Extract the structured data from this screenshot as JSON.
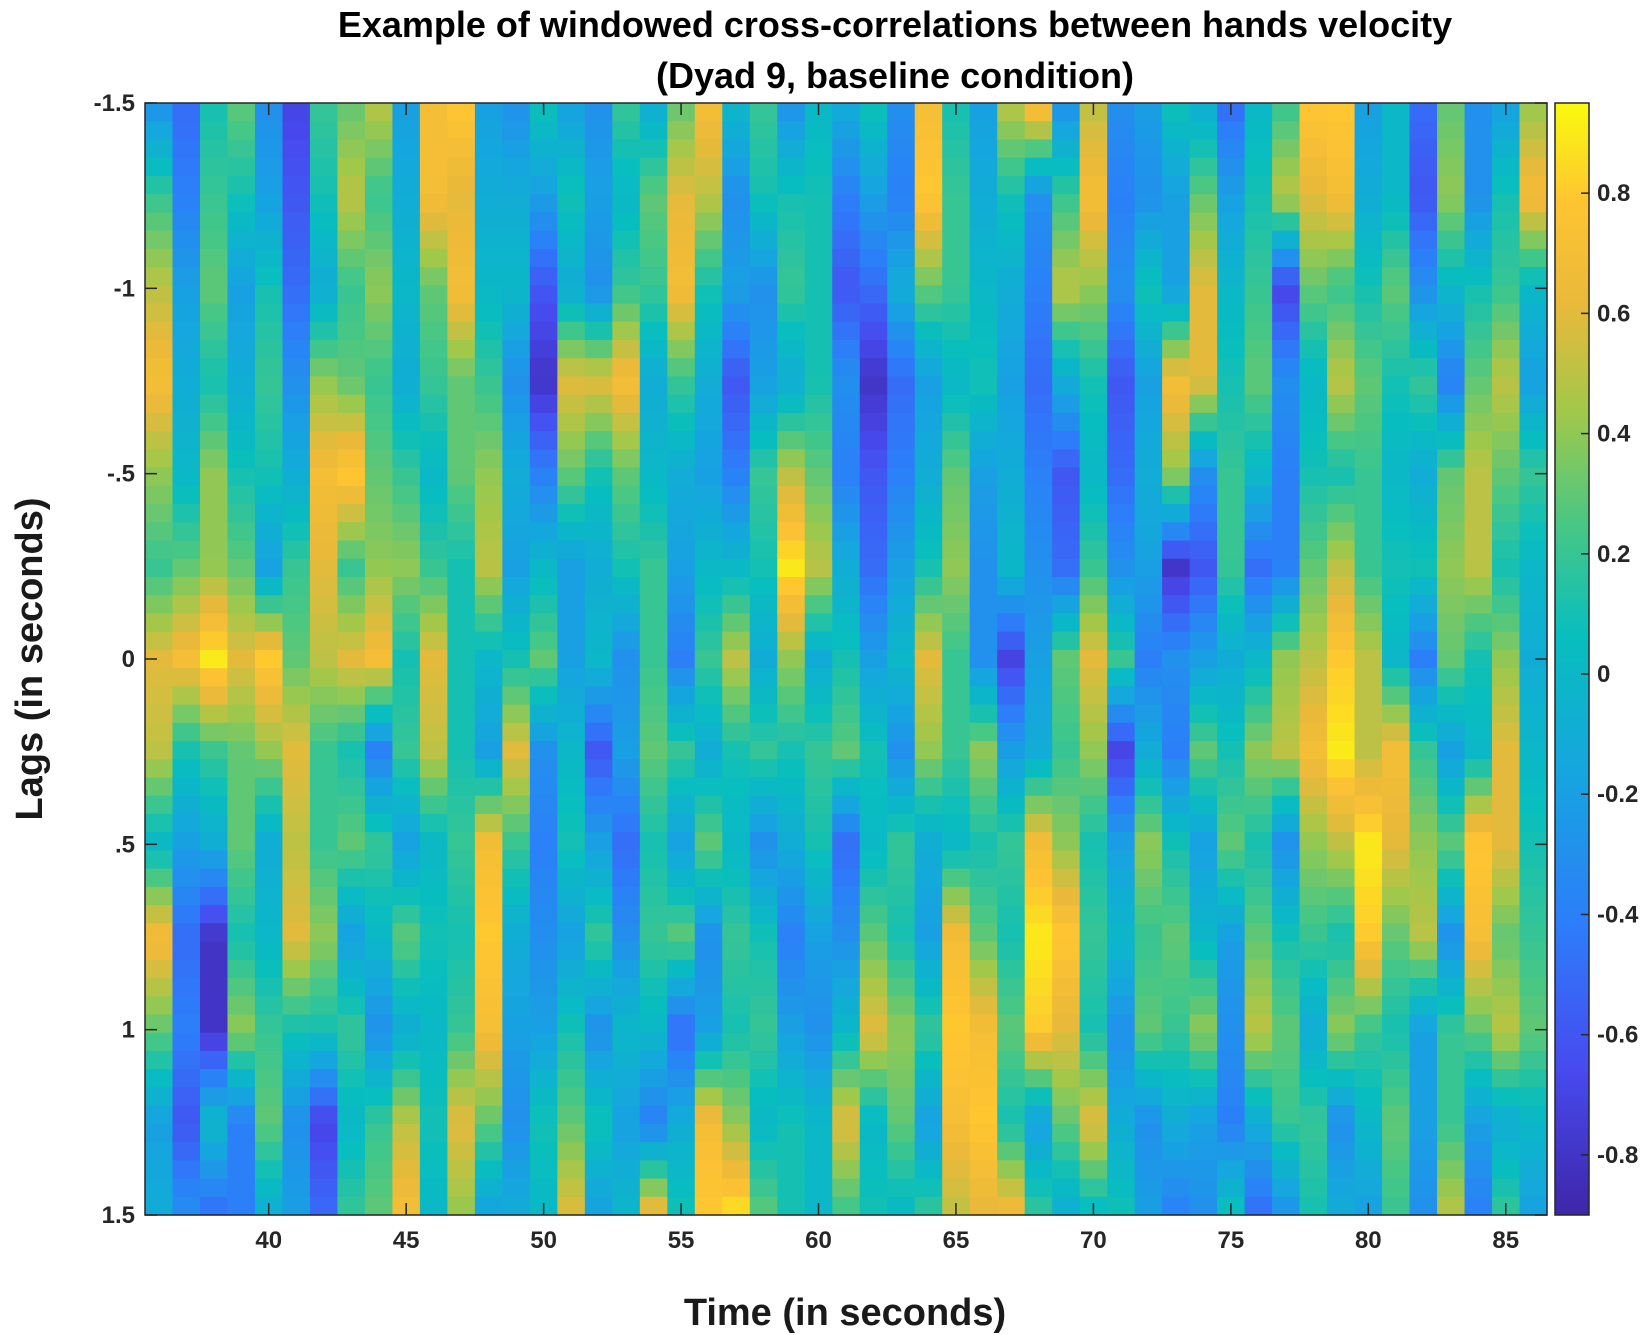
{
  "chart_data": {
    "type": "heatmap",
    "title": [
      "Example of windowed cross-correlations between hands velocity",
      "(Dyad 9, baseline condition)"
    ],
    "xlabel": "Time (in seconds)",
    "ylabel": "Lags (in seconds)",
    "xlim": [
      35.5,
      86.5
    ],
    "ylim": [
      -1.5,
      1.5
    ],
    "y_reversed": true,
    "x_ticks": [
      40,
      45,
      50,
      55,
      60,
      65,
      70,
      75,
      80,
      85
    ],
    "x_tick_labels": [
      "40",
      "45",
      "50",
      "55",
      "60",
      "65",
      "70",
      "75",
      "80",
      "85"
    ],
    "y_ticks": [
      -1.5,
      -1,
      -0.5,
      0,
      0.5,
      1,
      1.5
    ],
    "y_tick_labels": [
      "-1.5",
      "-1",
      "-.5",
      "0",
      ".5",
      "1",
      "1.5"
    ],
    "colorbar": {
      "colormap": "parula",
      "range": [
        -0.9,
        0.95
      ],
      "ticks": [
        0.8,
        0.6,
        0.4,
        0.2,
        0,
        -0.2,
        -0.4,
        -0.6,
        -0.8
      ],
      "tick_labels": [
        "0.8",
        "0.6",
        "0.4",
        "0.2",
        "0",
        "-0.2",
        "-0.4",
        "-0.6",
        "-0.8"
      ]
    },
    "x": [
      36,
      37,
      38,
      39,
      40,
      41,
      42,
      43,
      44,
      45,
      46,
      47,
      48,
      49,
      50,
      51,
      52,
      53,
      54,
      55,
      56,
      57,
      58,
      59,
      60,
      61,
      62,
      63,
      64,
      65,
      66,
      67,
      68,
      69,
      70,
      71,
      72,
      73,
      74,
      75,
      76,
      77,
      78,
      79,
      80,
      81,
      82,
      83,
      84,
      85,
      86
    ],
    "lags": [
      -1.5,
      -1.25,
      -1,
      -0.75,
      -0.5,
      -0.25,
      0,
      0.25,
      0.5,
      0.75,
      1,
      1.25,
      1.5
    ],
    "z": [
      [
        -0.3,
        -0.5,
        0.1,
        0.3,
        -0.3,
        -0.7,
        0.2,
        0.3,
        0.5,
        -0.2,
        0.7,
        0.8,
        -0.2,
        -0.3,
        0.1,
        -0.2,
        -0.3,
        0.2,
        -0.1,
        0.3,
        0.7,
        0.0,
        0.2,
        -0.3,
        0.0,
        -0.1,
        0.1,
        -0.3,
        0.7,
        0.1,
        -0.2,
        0.5,
        0.8,
        -0.3,
        0.5,
        -0.3,
        -0.2,
        0.1,
        -0.1,
        -0.5,
        0.0,
        0.2,
        0.8,
        0.8,
        -0.2,
        0.0,
        -0.5,
        0.3,
        -0.3,
        -0.2,
        0.4
      ],
      [
        0.2,
        -0.4,
        0.2,
        0.1,
        -0.2,
        -0.6,
        0.1,
        0.5,
        0.2,
        -0.1,
        0.7,
        0.6,
        -0.1,
        -0.1,
        -0.2,
        0.1,
        -0.2,
        0.0,
        0.3,
        0.6,
        0.5,
        -0.3,
        0.1,
        0.1,
        0.1,
        -0.4,
        -0.2,
        -0.4,
        0.8,
        0.2,
        -0.1,
        0.1,
        -0.3,
        0.2,
        0.7,
        -0.4,
        -0.3,
        -0.2,
        0.3,
        -0.2,
        0.1,
        0.5,
        0.6,
        0.7,
        -0.1,
        0.0,
        -0.6,
        0.4,
        -0.3,
        0.1,
        0.7
      ],
      [
        0.5,
        -0.2,
        0.3,
        -0.2,
        0.1,
        -0.5,
        -0.1,
        0.2,
        0.4,
        0.0,
        0.3,
        0.7,
        0.0,
        0.0,
        -0.6,
        -0.1,
        -0.3,
        0.2,
        0.2,
        0.7,
        0.1,
        -0.2,
        -0.3,
        0.2,
        0.1,
        -0.6,
        -0.5,
        -0.1,
        0.3,
        0.2,
        0.0,
        -0.1,
        -0.4,
        0.5,
        0.4,
        -0.3,
        0.1,
        -0.2,
        0.6,
        0.0,
        0.2,
        -0.7,
        0.3,
        0.2,
        0.1,
        0.3,
        -0.3,
        0.0,
        0.1,
        0.2,
        0.0
      ],
      [
        0.7,
        -0.1,
        0.1,
        -0.1,
        0.2,
        -0.3,
        0.4,
        0.3,
        0.2,
        -0.1,
        0.2,
        0.3,
        0.2,
        -0.3,
        -0.8,
        0.6,
        0.6,
        0.7,
        -0.1,
        0.2,
        -0.1,
        -0.6,
        -0.2,
        -0.1,
        0.1,
        -0.3,
        -0.8,
        -0.5,
        -0.2,
        0.0,
        0.1,
        -0.2,
        -0.5,
        -0.1,
        0.1,
        -0.6,
        -0.2,
        0.7,
        0.6,
        0.1,
        0.3,
        -0.3,
        0.0,
        0.5,
        0.3,
        0.1,
        0.2,
        -0.4,
        0.3,
        0.5,
        -0.2
      ],
      [
        0.4,
        0.0,
        0.4,
        0.1,
        0.1,
        -0.1,
        0.7,
        0.8,
        0.3,
        0.2,
        0.0,
        0.3,
        0.4,
        -0.1,
        -0.4,
        0.3,
        0.1,
        0.3,
        0.0,
        -0.1,
        -0.2,
        -0.4,
        0.2,
        0.5,
        0.3,
        -0.4,
        -0.6,
        -0.4,
        -0.1,
        0.3,
        -0.2,
        -0.1,
        -0.4,
        -0.6,
        0.0,
        -0.5,
        -0.1,
        0.4,
        -0.3,
        0.2,
        0.0,
        -0.4,
        0.1,
        0.1,
        0.2,
        0.0,
        -0.1,
        0.3,
        0.5,
        0.3,
        0.2
      ],
      [
        0.2,
        0.3,
        0.4,
        0.3,
        -0.2,
        0.2,
        0.6,
        0.2,
        0.4,
        0.4,
        0.2,
        0.1,
        0.5,
        -0.2,
        0.0,
        -0.2,
        -0.1,
        0.1,
        0.2,
        -0.2,
        0.0,
        0.0,
        0.1,
        0.9,
        0.5,
        -0.1,
        -0.5,
        -0.2,
        0.1,
        0.4,
        -0.3,
        0.0,
        -0.3,
        -0.5,
        0.2,
        -0.3,
        -0.2,
        -0.8,
        -0.6,
        0.2,
        -0.5,
        -0.4,
        0.3,
        0.5,
        0.2,
        0.1,
        0.1,
        0.4,
        0.5,
        0.1,
        0.0
      ],
      [
        0.6,
        0.7,
        0.9,
        0.6,
        0.8,
        0.3,
        0.5,
        0.6,
        0.7,
        0.1,
        0.6,
        0.1,
        0.0,
        0.1,
        0.3,
        -0.2,
        0.0,
        -0.3,
        0.2,
        -0.4,
        0.2,
        0.5,
        -0.1,
        0.4,
        -0.1,
        0.1,
        -0.2,
        0.0,
        0.6,
        0.2,
        -0.3,
        -0.7,
        -0.2,
        0.3,
        0.6,
        0.2,
        -0.4,
        -0.3,
        -0.2,
        -0.1,
        0.0,
        0.4,
        0.5,
        0.8,
        0.5,
        0.0,
        -0.4,
        0.3,
        0.1,
        0.4,
        -0.1
      ],
      [
        0.5,
        0.1,
        0.2,
        0.3,
        0.4,
        0.6,
        0.2,
        0.1,
        -0.4,
        0.2,
        0.5,
        0.1,
        -0.2,
        0.6,
        -0.3,
        0.0,
        -0.6,
        -0.2,
        0.3,
        0.2,
        -0.1,
        0.1,
        0.2,
        0.1,
        0.2,
        0.3,
        0.1,
        -0.3,
        0.4,
        0.2,
        0.4,
        -0.2,
        -0.1,
        0.2,
        0.4,
        -0.7,
        -0.1,
        -0.4,
        0.3,
        0.1,
        0.4,
        0.5,
        0.7,
        0.9,
        0.5,
        0.7,
        0.2,
        -0.2,
        0.0,
        0.6,
        0.0
      ],
      [
        0.0,
        -0.2,
        -0.1,
        0.3,
        -0.1,
        0.5,
        0.2,
        0.3,
        0.2,
        -0.2,
        0.0,
        0.2,
        0.7,
        0.2,
        -0.4,
        0.1,
        -0.2,
        -0.5,
        0.1,
        -0.2,
        0.3,
        0.0,
        -0.3,
        -0.1,
        0.1,
        -0.5,
        0.0,
        0.2,
        -0.1,
        0.0,
        0.1,
        0.2,
        0.7,
        0.4,
        0.1,
        -0.2,
        0.4,
        0.1,
        -0.2,
        0.3,
        0.1,
        -0.3,
        0.4,
        0.5,
        0.9,
        0.6,
        0.4,
        0.3,
        0.8,
        0.6,
        0.1
      ],
      [
        0.7,
        -0.5,
        -0.8,
        0.1,
        0.0,
        0.6,
        0.4,
        -0.2,
        0.0,
        0.3,
        0.1,
        0.1,
        0.8,
        -0.1,
        -0.3,
        -0.2,
        0.2,
        -0.3,
        0.2,
        0.3,
        -0.3,
        0.2,
        0.1,
        -0.4,
        -0.2,
        -0.3,
        0.3,
        0.1,
        -0.2,
        0.7,
        0.3,
        0.1,
        0.9,
        0.8,
        0.2,
        0.0,
        0.2,
        0.3,
        0.0,
        -0.2,
        0.3,
        0.1,
        0.2,
        0.1,
        0.8,
        0.3,
        0.5,
        -0.3,
        0.7,
        0.3,
        0.2
      ],
      [
        0.3,
        -0.4,
        -0.8,
        0.4,
        0.2,
        0.1,
        0.1,
        0.2,
        -0.3,
        -0.1,
        0.0,
        0.2,
        0.7,
        -0.2,
        -0.2,
        0.1,
        -0.3,
        0.0,
        0.0,
        -0.5,
        -0.2,
        0.1,
        0.2,
        -0.2,
        -0.3,
        0.0,
        0.6,
        0.4,
        0.2,
        0.8,
        0.7,
        0.3,
        0.8,
        0.6,
        0.1,
        -0.3,
        0.3,
        0.2,
        0.4,
        -0.3,
        0.5,
        0.3,
        -0.1,
        0.4,
        0.2,
        0.1,
        -0.2,
        0.2,
        0.3,
        0.5,
        0.3
      ],
      [
        -0.2,
        -0.6,
        0.0,
        -0.4,
        0.3,
        -0.3,
        -0.7,
        0.0,
        0.2,
        0.5,
        0.1,
        0.6,
        0.3,
        -0.3,
        0.1,
        0.3,
        0.1,
        -0.2,
        -0.4,
        -0.1,
        0.7,
        0.4,
        0.0,
        0.1,
        0.0,
        0.6,
        0.0,
        0.3,
        -0.2,
        0.7,
        0.8,
        0.1,
        -0.2,
        0.3,
        0.6,
        -0.1,
        -0.3,
        -0.1,
        -0.2,
        -0.4,
        -0.1,
        0.2,
        0.2,
        -0.3,
        0.0,
        0.3,
        -0.2,
        0.2,
        -0.2,
        -0.1,
        0.0
      ],
      [
        -0.1,
        -0.3,
        -0.5,
        -0.4,
        -0.1,
        -0.2,
        -0.5,
        0.2,
        0.3,
        0.7,
        0.0,
        0.4,
        -0.2,
        -0.1,
        0.0,
        0.6,
        -0.2,
        0.0,
        0.7,
        0.1,
        0.8,
        0.9,
        0.3,
        0.1,
        0.0,
        0.2,
        0.1,
        0.0,
        0.2,
        0.5,
        0.6,
        0.7,
        0.2,
        -0.1,
        0.0,
        0.1,
        -0.2,
        -0.4,
        -0.3,
        0.1,
        -0.5,
        -0.3,
        0.1,
        -0.1,
        -0.2,
        0.2,
        -0.3,
        0.5,
        -0.4,
        0.2,
        -0.2
      ]
    ]
  }
}
